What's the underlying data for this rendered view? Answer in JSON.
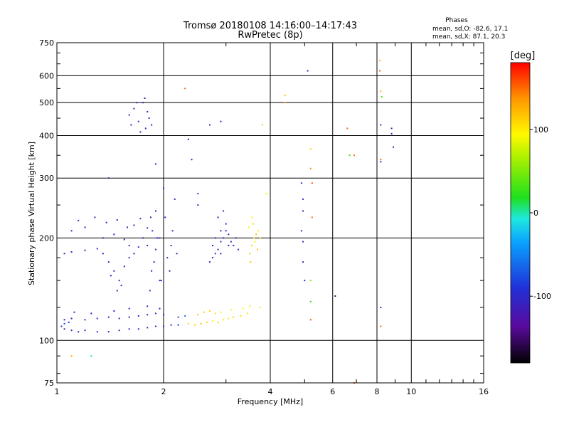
{
  "chart_data": {
    "type": "scatter",
    "title": "Tromsø 20180108 14:16:00–14:17:43",
    "subtitle": "RwPretec (8p)",
    "xlabel": "Frequency [MHz]",
    "ylabel": "Stationary phase Virtual Height [km]",
    "xscale": "log",
    "yscale": "log",
    "xlim": [
      1,
      16
    ],
    "ylim": [
      75,
      750
    ],
    "xticks": [
      1,
      2,
      4,
      6,
      8,
      10,
      16
    ],
    "xtick_labels": [
      "1",
      "2",
      "4",
      "6",
      "8",
      "10",
      "16"
    ],
    "yticks": [
      75,
      100,
      200,
      300,
      400,
      500,
      600,
      750
    ],
    "ytick_labels": [
      "75",
      "100",
      "200",
      "300",
      "400",
      "500",
      "600",
      "750"
    ],
    "grid": true,
    "stats": {
      "header": "Phases",
      "line1": "mean, sd,O: -82.6, 17.1",
      "line2": "mean, sd,X:  87.1, 20.3"
    },
    "colorbar": {
      "label": "[deg]",
      "range": [
        -180,
        180
      ],
      "ticks": [
        100,
        0,
        -100
      ],
      "tick_labels": [
        "100",
        "0",
        "-100"
      ]
    },
    "points": [
      [
        1.05,
        108,
        -100
      ],
      [
        1.1,
        107,
        -105
      ],
      [
        1.15,
        106,
        -110
      ],
      [
        1.2,
        107,
        -100
      ],
      [
        1.3,
        106,
        -105
      ],
      [
        1.4,
        106,
        -110
      ],
      [
        1.5,
        107,
        -105
      ],
      [
        1.6,
        108,
        -100
      ],
      [
        1.7,
        108,
        -105
      ],
      [
        1.8,
        109,
        -100
      ],
      [
        1.9,
        110,
        -100
      ],
      [
        2.0,
        110,
        -95
      ],
      [
        2.1,
        111,
        -100
      ],
      [
        2.2,
        111,
        -95
      ],
      [
        1.05,
        115,
        -110
      ],
      [
        1.1,
        116,
        -100
      ],
      [
        1.2,
        115,
        -110
      ],
      [
        1.3,
        116,
        -105
      ],
      [
        1.4,
        117,
        -100
      ],
      [
        1.5,
        116,
        -105
      ],
      [
        1.6,
        117,
        -110
      ],
      [
        1.7,
        118,
        -100
      ],
      [
        1.8,
        119,
        -105
      ],
      [
        1.9,
        120,
        -100
      ],
      [
        2.0,
        119,
        -95
      ],
      [
        1.03,
        110,
        -90
      ],
      [
        1.05,
        112,
        -80
      ],
      [
        1.08,
        113,
        -95
      ],
      [
        1.12,
        121,
        -100
      ],
      [
        1.25,
        120,
        -105
      ],
      [
        1.45,
        122,
        -100
      ],
      [
        1.6,
        124,
        -100
      ],
      [
        1.8,
        126,
        -105
      ],
      [
        1.95,
        124,
        -100
      ],
      [
        2.35,
        112,
        110
      ],
      [
        2.45,
        111,
        115
      ],
      [
        2.55,
        112,
        120
      ],
      [
        2.65,
        113,
        110
      ],
      [
        2.75,
        114,
        100
      ],
      [
        2.85,
        113,
        110
      ],
      [
        2.95,
        115,
        105
      ],
      [
        3.05,
        116,
        100
      ],
      [
        3.15,
        117,
        110
      ],
      [
        3.3,
        118,
        105
      ],
      [
        3.45,
        120,
        100
      ],
      [
        2.5,
        119,
        120
      ],
      [
        2.6,
        121,
        115
      ],
      [
        2.7,
        122,
        110
      ],
      [
        2.8,
        120,
        105
      ],
      [
        2.9,
        121,
        100
      ],
      [
        3.1,
        123,
        100
      ],
      [
        3.35,
        124,
        95
      ],
      [
        3.5,
        126,
        100
      ],
      [
        2.2,
        117,
        -80
      ],
      [
        2.3,
        118,
        -60
      ],
      [
        1.05,
        180,
        -100
      ],
      [
        1.1,
        182,
        -105
      ],
      [
        1.2,
        184,
        -110
      ],
      [
        1.3,
        186,
        -100
      ],
      [
        1.35,
        200,
        -105
      ],
      [
        1.45,
        205,
        -100
      ],
      [
        1.55,
        198,
        -110
      ],
      [
        1.6,
        190,
        -105
      ],
      [
        1.7,
        188,
        -100
      ],
      [
        1.75,
        200,
        -105
      ],
      [
        1.1,
        210,
        -110
      ],
      [
        1.15,
        225,
        -100
      ],
      [
        1.2,
        215,
        -105
      ],
      [
        1.28,
        230,
        -110
      ],
      [
        1.38,
        222,
        -100
      ],
      [
        1.48,
        226,
        -105
      ],
      [
        1.58,
        215,
        -110
      ],
      [
        1.65,
        218,
        -100
      ],
      [
        1.72,
        228,
        -105
      ],
      [
        1.8,
        214,
        -100
      ],
      [
        1.4,
        170,
        -100
      ],
      [
        1.45,
        160,
        -105
      ],
      [
        1.5,
        150,
        -110
      ],
      [
        1.55,
        165,
        -100
      ],
      [
        1.6,
        175,
        -100
      ],
      [
        1.65,
        180,
        -105
      ],
      [
        1.48,
        140,
        -110
      ],
      [
        1.52,
        145,
        -100
      ],
      [
        1.42,
        155,
        -105
      ],
      [
        1.35,
        180,
        -100
      ],
      [
        1.85,
        160,
        -100
      ],
      [
        1.88,
        170,
        -105
      ],
      [
        1.9,
        185,
        -110
      ],
      [
        1.92,
        200,
        -100
      ],
      [
        1.86,
        210,
        -105
      ],
      [
        1.84,
        230,
        -100
      ],
      [
        1.9,
        240,
        -110
      ],
      [
        1.95,
        150,
        -100
      ],
      [
        1.83,
        140,
        -105
      ],
      [
        1.8,
        190,
        -100
      ],
      [
        1.95,
        200,
        -90
      ],
      [
        2.05,
        175,
        -100
      ],
      [
        2.1,
        190,
        -105
      ],
      [
        2.12,
        210,
        -100
      ],
      [
        2.08,
        160,
        -110
      ],
      [
        2.02,
        230,
        -100
      ],
      [
        2.0,
        280,
        -105
      ],
      [
        2.15,
        260,
        -110
      ],
      [
        2.18,
        180,
        -100
      ],
      [
        1.97,
        150,
        -95
      ],
      [
        1.6,
        460,
        -110
      ],
      [
        1.65,
        480,
        -105
      ],
      [
        1.7,
        440,
        -100
      ],
      [
        1.75,
        500,
        -115
      ],
      [
        1.78,
        420,
        -110
      ],
      [
        1.8,
        470,
        -105
      ],
      [
        1.82,
        450,
        -110
      ],
      [
        1.72,
        410,
        -100
      ],
      [
        1.68,
        500,
        -105
      ],
      [
        1.85,
        430,
        -120
      ],
      [
        1.62,
        430,
        -90
      ],
      [
        1.77,
        515,
        -110
      ],
      [
        2.7,
        170,
        -110
      ],
      [
        2.75,
        175,
        -105
      ],
      [
        2.8,
        180,
        -110
      ],
      [
        2.85,
        185,
        -100
      ],
      [
        2.9,
        195,
        -110
      ],
      [
        2.95,
        200,
        -105
      ],
      [
        3.0,
        210,
        -100
      ],
      [
        3.05,
        205,
        -110
      ],
      [
        3.1,
        195,
        -105
      ],
      [
        3.15,
        190,
        -110
      ],
      [
        2.8,
        200,
        -120
      ],
      [
        2.9,
        210,
        -115
      ],
      [
        3.0,
        220,
        -110
      ],
      [
        2.85,
        230,
        -120
      ],
      [
        2.95,
        240,
        -110
      ],
      [
        3.05,
        190,
        -115
      ],
      [
        3.2,
        200,
        -110
      ],
      [
        3.25,
        185,
        -105
      ],
      [
        2.75,
        190,
        -100
      ],
      [
        2.9,
        180,
        -110
      ],
      [
        3.5,
        180,
        110
      ],
      [
        3.55,
        190,
        115
      ],
      [
        3.6,
        200,
        110
      ],
      [
        3.65,
        205,
        120
      ],
      [
        3.7,
        210,
        105
      ],
      [
        3.58,
        220,
        110
      ],
      [
        3.62,
        195,
        100
      ],
      [
        3.68,
        185,
        115
      ],
      [
        3.52,
        170,
        120
      ],
      [
        3.75,
        200,
        110
      ],
      [
        3.55,
        230,
        100
      ],
      [
        3.48,
        215,
        90
      ],
      [
        4.4,
        500,
        130
      ],
      [
        4.4,
        525,
        115
      ],
      [
        5.1,
        620,
        -110
      ],
      [
        5.2,
        365,
        110
      ],
      [
        5.2,
        320,
        140
      ],
      [
        5.25,
        290,
        160
      ],
      [
        5.25,
        230,
        150
      ],
      [
        5.2,
        150,
        50
      ],
      [
        5.2,
        130,
        20
      ],
      [
        5.2,
        115,
        160
      ],
      [
        4.9,
        290,
        -100
      ],
      [
        4.95,
        260,
        -105
      ],
      [
        4.95,
        240,
        -110
      ],
      [
        4.9,
        210,
        -120
      ],
      [
        4.95,
        195,
        -100
      ],
      [
        4.95,
        170,
        -110
      ],
      [
        5.0,
        150,
        -100
      ],
      [
        6.1,
        135,
        -150
      ],
      [
        6.6,
        420,
        150
      ],
      [
        6.7,
        350,
        30
      ],
      [
        6.9,
        350,
        150
      ],
      [
        8.15,
        665,
        120
      ],
      [
        8.15,
        620,
        150
      ],
      [
        8.2,
        540,
        120
      ],
      [
        8.25,
        520,
        30
      ],
      [
        8.2,
        430,
        -100
      ],
      [
        8.2,
        340,
        150
      ],
      [
        8.2,
        335,
        -120
      ],
      [
        8.2,
        125,
        -100
      ],
      [
        8.2,
        110,
        150
      ],
      [
        8.8,
        420,
        -110
      ],
      [
        8.8,
        405,
        -120
      ],
      [
        8.9,
        370,
        -110
      ],
      [
        2.3,
        550,
        150
      ],
      [
        2.35,
        390,
        -110
      ],
      [
        2.4,
        340,
        -100
      ],
      [
        1.9,
        330,
        -100
      ],
      [
        1.4,
        300,
        -110
      ],
      [
        2.7,
        430,
        -100
      ],
      [
        2.9,
        440,
        -110
      ],
      [
        3.8,
        430,
        110
      ],
      [
        3.9,
        270,
        100
      ],
      [
        3.75,
        125,
        100
      ],
      [
        1.1,
        90,
        130
      ],
      [
        1.25,
        90,
        0
      ],
      [
        2.5,
        250,
        -110
      ],
      [
        2.5,
        270,
        -100
      ],
      [
        6.9,
        75,
        150
      ]
    ]
  }
}
